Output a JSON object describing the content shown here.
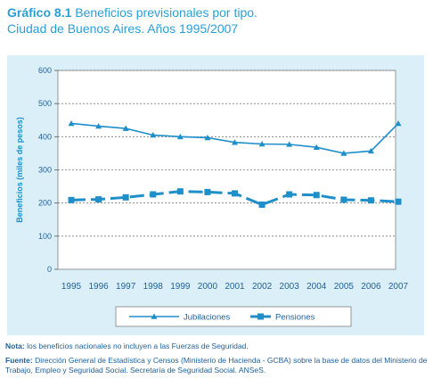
{
  "header": {
    "graph_number": "Gráfico 8.1",
    "title": "Beneficios previsionales por tipo.",
    "subtitle": "Ciudad de Buenos Aires. Años 1995/2007"
  },
  "colors": {
    "series": "#1f8fca",
    "title": "#2a9fd6",
    "panel": "#dbeff9",
    "text": "#1f5f99"
  },
  "chart_data": {
    "type": "line",
    "title": "Beneficios previsionales por tipo.",
    "subtitle": "Ciudad de Buenos Aires. Años 1995/2007",
    "xlabel": "",
    "ylabel": "Beneficios (miles de pesos)",
    "ylim": [
      0,
      600
    ],
    "yticks": [
      0,
      100,
      200,
      300,
      400,
      500,
      600
    ],
    "grid": "horizontal dashed",
    "legend": "bottom",
    "x": [
      "1995",
      "1996",
      "1997",
      "1998",
      "1999",
      "2000",
      "2001",
      "2002",
      "2003",
      "2004",
      "2005",
      "2006",
      "2007"
    ],
    "series": [
      {
        "name": "Jubilaciones",
        "marker": "triangle",
        "values": [
          440,
          432,
          425,
          405,
          400,
          397,
          383,
          378,
          377,
          368,
          350,
          357,
          440
        ]
      },
      {
        "name": "Pensiones",
        "marker": "square",
        "style": "dashed",
        "values": [
          209,
          211,
          217,
          226,
          235,
          233,
          229,
          195,
          226,
          224,
          210,
          208,
          204
        ]
      }
    ]
  },
  "footer": {
    "nota_label": "Nota:",
    "nota_text": "los beneficios nacionales no incluyen a las Fuerzas de Seguridad.",
    "fuente_label": "Fuente:",
    "fuente_text": "Dirección General de Estadística y Censos (Ministerio de Hacienda - GCBA) sobre la base de datos del Ministerio de Trabajo, Empleo y Seguridad Social. Secretaría de Seguridad Social. ANSeS."
  }
}
